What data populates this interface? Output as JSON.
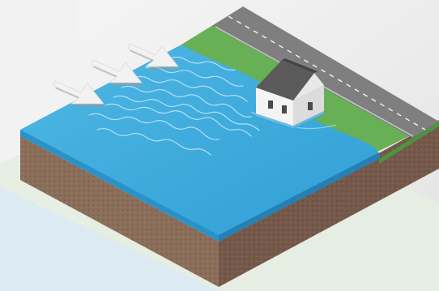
{
  "scene": {
    "subject": "storm-surge-flooding",
    "wind_arrow_count": 3,
    "wave_line_count": 8,
    "road_has_dashed_centerline": true,
    "house": {
      "walls": "white",
      "roof": "dark-gray"
    }
  },
  "colors": {
    "background_light": "#eef0ee",
    "background_mid": "#e4ece2",
    "water": "#3aa7d9",
    "water_highlight": "#5cc0e8",
    "water_side": "#2a92c8",
    "grass": "#68b056",
    "grass_dark": "#4e9440",
    "road": "#7f7f7f",
    "road_edge": "#bdbdbd",
    "soil": "#8b6e5a",
    "soil_dark": "#6f5646",
    "house_wall": "#f4f4f4",
    "house_roof": "#5a5a5a",
    "arrow": "#f2f2f2"
  }
}
